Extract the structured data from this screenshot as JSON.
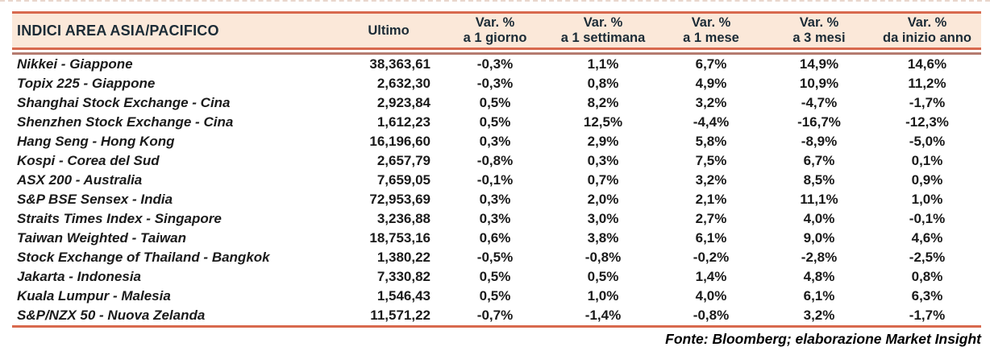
{
  "colors": {
    "accent": "#d8694e",
    "accent-muted": "#b57b70",
    "band-bg": "#fbe8d9",
    "header-text": "#1b2b36",
    "body-text": "#1a1a1a",
    "dashed": "#e9d6cc"
  },
  "table": {
    "title": "INDICI AREA ASIA/PACIFICO",
    "ultimo_label": "Ultimo",
    "var_columns": [
      {
        "line1": "Var. %",
        "line2": "a 1 giorno"
      },
      {
        "line1": "Var. %",
        "line2": "a 1 settimana"
      },
      {
        "line1": "Var. %",
        "line2": "a 1 mese"
      },
      {
        "line1": "Var. %",
        "line2": "a 3 mesi"
      },
      {
        "line1": "Var. %",
        "line2": "da inizio anno"
      }
    ],
    "rows": [
      {
        "name": "Nikkei - Giappone",
        "ultimo": "38,363,61",
        "values": [
          "-0,3%",
          "1,1%",
          "6,7%",
          "14,9%",
          "14,6%"
        ]
      },
      {
        "name": "Topix 225 - Giappone",
        "ultimo": "2,632,30",
        "values": [
          "-0,3%",
          "0,8%",
          "4,9%",
          "10,9%",
          "11,2%"
        ]
      },
      {
        "name": "Shanghai Stock Exchange - Cina",
        "ultimo": "2,923,84",
        "values": [
          "0,5%",
          "8,2%",
          "3,2%",
          "-4,7%",
          "-1,7%"
        ]
      },
      {
        "name": "Shenzhen Stock Exchange - Cina",
        "ultimo": "1,612,23",
        "values": [
          "0,5%",
          "12,5%",
          "-4,4%",
          "-16,7%",
          "-12,3%"
        ]
      },
      {
        "name": "Hang Seng - Hong Kong",
        "ultimo": "16,196,60",
        "values": [
          "0,3%",
          "2,9%",
          "5,8%",
          "-8,9%",
          "-5,0%"
        ]
      },
      {
        "name": "Kospi - Corea del Sud",
        "ultimo": "2,657,79",
        "values": [
          "-0,8%",
          "0,3%",
          "7,5%",
          "6,7%",
          "0,1%"
        ]
      },
      {
        "name": "ASX 200 - Australia",
        "ultimo": "7,659,05",
        "values": [
          "-0,1%",
          "0,7%",
          "3,2%",
          "8,5%",
          "0,9%"
        ]
      },
      {
        "name": "S&P BSE Sensex - India",
        "ultimo": "72,953,69",
        "values": [
          "0,3%",
          "2,0%",
          "2,1%",
          "11,1%",
          "1,0%"
        ]
      },
      {
        "name": "Straits Times Index - Singapore",
        "ultimo": "3,236,88",
        "values": [
          "0,3%",
          "3,0%",
          "2,7%",
          "4,0%",
          "-0,1%"
        ]
      },
      {
        "name": "Taiwan Weighted - Taiwan",
        "ultimo": "18,753,16",
        "values": [
          "0,6%",
          "3,8%",
          "6,1%",
          "9,0%",
          "4,6%"
        ]
      },
      {
        "name": "Stock Exchange of Thailand - Bangkok",
        "ultimo": "1,380,22",
        "values": [
          "-0,5%",
          "-0,8%",
          "-0,2%",
          "-2,8%",
          "-2,5%"
        ]
      },
      {
        "name": "Jakarta - Indonesia",
        "ultimo": "7,330,82",
        "values": [
          "0,5%",
          "0,5%",
          "1,4%",
          "4,8%",
          "0,8%"
        ]
      },
      {
        "name": "Kuala Lumpur - Malesia",
        "ultimo": "1,546,43",
        "values": [
          "0,5%",
          "1,0%",
          "4,0%",
          "6,1%",
          "6,3%"
        ]
      },
      {
        "name": "S&P/NZX 50 - Nuova Zelanda",
        "ultimo": "11,571,22",
        "values": [
          "-0,7%",
          "-1,4%",
          "-0,8%",
          "3,2%",
          "-1,7%"
        ]
      }
    ],
    "footer": "Fonte: Bloomberg; elaborazione Market Insight"
  }
}
